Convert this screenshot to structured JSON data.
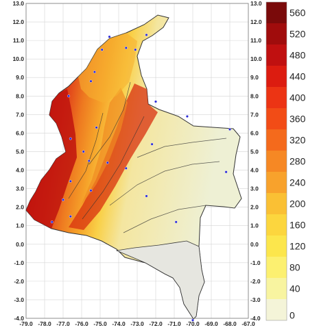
{
  "map": {
    "x_ticks": [
      "-79.0",
      "-78.0",
      "-77.0",
      "-76.0",
      "-75.0",
      "-74.0",
      "-73.0",
      "-72.0",
      "-71.0",
      "-70.0",
      "-69.0",
      "-68.0",
      "-67.0"
    ],
    "y_ticks": [
      "13.0",
      "12.0",
      "11.0",
      "10.0",
      "9.0",
      "8.0",
      "7.0",
      "6.0",
      "5.0",
      "4.0",
      "3.0",
      "2.0",
      "1.0",
      "0.0",
      "-1.0",
      "-2.0",
      "-3.0",
      "-4.0"
    ],
    "x_range": [
      -79.0,
      -67.0
    ],
    "y_range": [
      -4.0,
      13.0
    ],
    "grid": true,
    "stations": [
      {
        "lon": -77.6,
        "lat": 1.2
      },
      {
        "lon": -76.6,
        "lat": 1.5
      },
      {
        "lon": -77.0,
        "lat": 2.4
      },
      {
        "lon": -76.6,
        "lat": 3.4
      },
      {
        "lon": -75.5,
        "lat": 2.9
      },
      {
        "lon": -75.6,
        "lat": 4.5
      },
      {
        "lon": -75.9,
        "lat": 5.0
      },
      {
        "lon": -76.6,
        "lat": 5.7
      },
      {
        "lon": -75.2,
        "lat": 6.3
      },
      {
        "lon": -74.6,
        "lat": 4.4
      },
      {
        "lon": -73.6,
        "lat": 4.1
      },
      {
        "lon": -72.2,
        "lat": 5.4
      },
      {
        "lon": -72.5,
        "lat": 2.6
      },
      {
        "lon": -70.9,
        "lat": 1.2
      },
      {
        "lon": -68.2,
        "lat": 3.9
      },
      {
        "lon": -68.0,
        "lat": 6.2
      },
      {
        "lon": -72.0,
        "lat": 7.7
      },
      {
        "lon": -75.5,
        "lat": 8.8
      },
      {
        "lon": -75.3,
        "lat": 9.3
      },
      {
        "lon": -74.9,
        "lat": 10.5
      },
      {
        "lon": -74.5,
        "lat": 11.2
      },
      {
        "lon": -72.5,
        "lat": 11.3
      },
      {
        "lon": -73.6,
        "lat": 10.6
      },
      {
        "lon": -73.1,
        "lat": 10.5
      },
      {
        "lon": -76.7,
        "lat": 8.0
      },
      {
        "lon": -70.0,
        "lat": -4.1
      },
      {
        "lon": -70.3,
        "lat": 6.9
      }
    ]
  },
  "legend": {
    "labels": [
      "560",
      "520",
      "480",
      "440",
      "400",
      "360",
      "320",
      "280",
      "240",
      "200",
      "160",
      "120",
      "80",
      "40",
      "0"
    ],
    "colors": [
      "#7a0a0a",
      "#a00c0c",
      "#c01010",
      "#dc1c10",
      "#ec3414",
      "#f24c16",
      "#f46a1c",
      "#f68824",
      "#f8a22c",
      "#fac034",
      "#fcd63e",
      "#fce64c",
      "#fcf070",
      "#f8f4a0",
      "#f4f4d8"
    ]
  }
}
